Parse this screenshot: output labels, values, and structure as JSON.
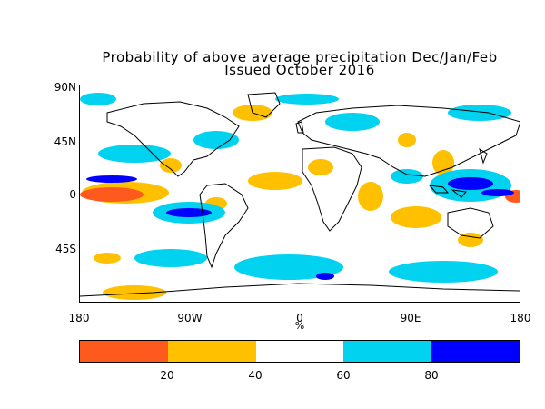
{
  "title_line1": "Probability of above average precipitation Dec/Jan/Feb",
  "title_line2": "Issued October 2016",
  "lat_labels": [
    "90N",
    "45N",
    "0",
    "45S"
  ],
  "lon_labels": [
    "180",
    "90W",
    "0",
    "90E",
    "180"
  ],
  "percent_symbol": "%",
  "colorbar": {
    "bins": [
      {
        "range": "0-20",
        "color": "#ff5a1e"
      },
      {
        "range": "20-40",
        "color": "#ffc000"
      },
      {
        "range": "40-60",
        "color": "#ffffff"
      },
      {
        "range": "60-80",
        "color": "#00d2f0"
      },
      {
        "range": "80-100",
        "color": "#0000ff"
      }
    ],
    "tick_labels": [
      "20",
      "40",
      "60",
      "80"
    ]
  },
  "map_colors": {
    "coastline": "#000000",
    "low": "#ff5a1e",
    "below": "#ffc000",
    "above": "#00d2f0",
    "high": "#0000ff"
  }
}
